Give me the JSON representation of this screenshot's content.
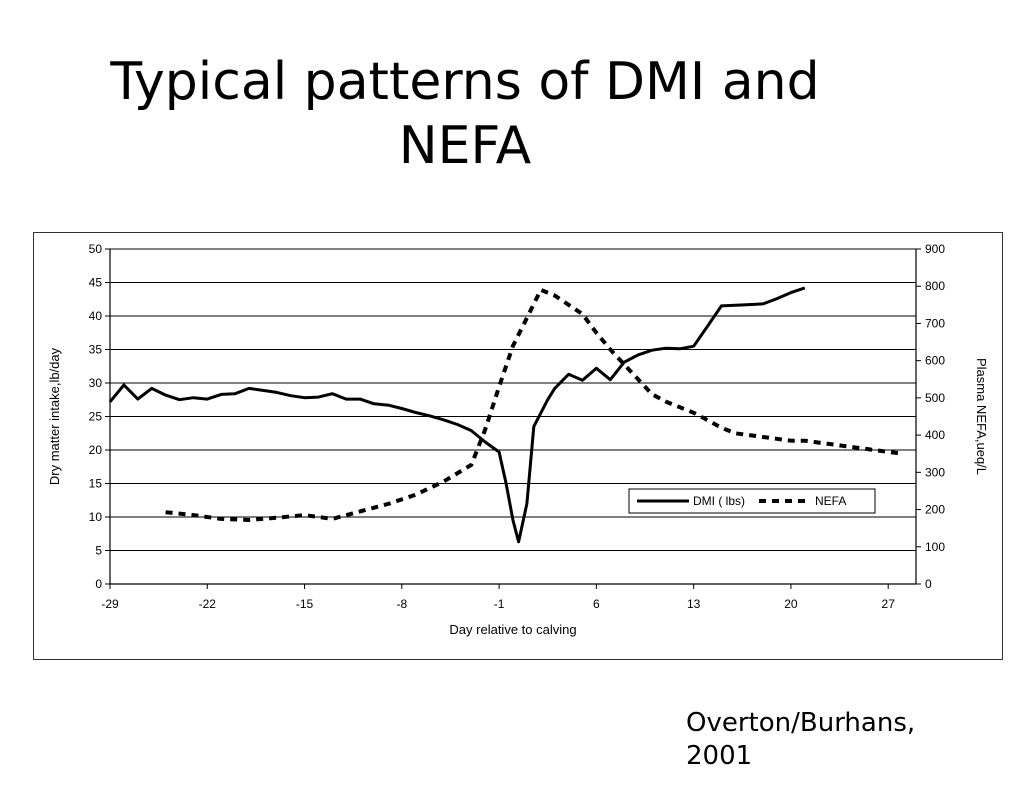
{
  "slide": {
    "title_line1": "Typical patterns of DMI and",
    "title_line2": "NEFA",
    "credit_line1": "Overton/Burhans,",
    "credit_line2": "2001"
  },
  "chart_data": {
    "type": "line",
    "xlabel": "Day relative to calving",
    "ylabel_left": "Dry matter intake,lb/day",
    "ylabel_right": "Plasma NEFA,ueq/L",
    "xlim": [
      -29,
      29
    ],
    "ylim_left": [
      0,
      50
    ],
    "ylim_right": [
      0,
      900
    ],
    "x_ticks": [
      -29,
      -22,
      -15,
      -8,
      -1,
      6,
      13,
      20,
      27
    ],
    "y_ticks_left": [
      0,
      5,
      10,
      15,
      20,
      25,
      30,
      35,
      40,
      45,
      50
    ],
    "y_ticks_right": [
      0,
      100,
      200,
      300,
      400,
      500,
      600,
      700,
      800,
      900
    ],
    "grid": "horizontal",
    "legend_placement": "bottom-right",
    "series": [
      {
        "name": "DMI ( lbs)",
        "axis": "left",
        "style": "solid",
        "color": "#000000",
        "points": [
          [
            -29,
            27.2
          ],
          [
            -28,
            29.7
          ],
          [
            -27,
            27.6
          ],
          [
            -26,
            29.2
          ],
          [
            -25,
            28.2
          ],
          [
            -24,
            27.5
          ],
          [
            -23,
            27.8
          ],
          [
            -22,
            27.6
          ],
          [
            -21,
            28.3
          ],
          [
            -20,
            28.4
          ],
          [
            -19,
            29.2
          ],
          [
            -18,
            28.9
          ],
          [
            -17,
            28.6
          ],
          [
            -16,
            28.1
          ],
          [
            -15,
            27.8
          ],
          [
            -14,
            27.9
          ],
          [
            -13,
            28.4
          ],
          [
            -12,
            27.6
          ],
          [
            -11,
            27.6
          ],
          [
            -10,
            26.9
          ],
          [
            -9,
            26.7
          ],
          [
            -8,
            26.2
          ],
          [
            -7,
            25.6
          ],
          [
            -6,
            25.1
          ],
          [
            -5,
            24.5
          ],
          [
            -4,
            23.8
          ],
          [
            -3,
            22.9
          ],
          [
            -2,
            21.2
          ],
          [
            -1,
            19.7
          ],
          [
            -0.5,
            15
          ],
          [
            0,
            9.5
          ],
          [
            0.4,
            6.3
          ],
          [
            1,
            12
          ],
          [
            1.5,
            23.5
          ],
          [
            2.5,
            27.5
          ],
          [
            3,
            29.2
          ],
          [
            4,
            31.3
          ],
          [
            5,
            30.4
          ],
          [
            6,
            32.2
          ],
          [
            7,
            30.5
          ],
          [
            8,
            33.1
          ],
          [
            9,
            34.2
          ],
          [
            10,
            34.9
          ],
          [
            11,
            35.2
          ],
          [
            12,
            35.1
          ],
          [
            13,
            35.5
          ],
          [
            14,
            38.5
          ],
          [
            15,
            41.5
          ],
          [
            16,
            41.6
          ],
          [
            17,
            41.7
          ],
          [
            18,
            41.8
          ],
          [
            19,
            42.6
          ],
          [
            20,
            43.5
          ],
          [
            21,
            44.2
          ]
        ]
      },
      {
        "name": "NEFA",
        "axis": "right",
        "style": "dashed",
        "color": "#000000",
        "points": [
          [
            -25,
            193
          ],
          [
            -23,
            185
          ],
          [
            -21,
            175
          ],
          [
            -19,
            172
          ],
          [
            -17,
            178
          ],
          [
            -15,
            185
          ],
          [
            -13,
            175
          ],
          [
            -11,
            195
          ],
          [
            -9,
            215
          ],
          [
            -7,
            240
          ],
          [
            -5,
            275
          ],
          [
            -3,
            320
          ],
          [
            -2,
            415
          ],
          [
            -1,
            530
          ],
          [
            0,
            640
          ],
          [
            1,
            715
          ],
          [
            2,
            790
          ],
          [
            3,
            775
          ],
          [
            4,
            750
          ],
          [
            5,
            725
          ],
          [
            6,
            675
          ],
          [
            7,
            630
          ],
          [
            8,
            590
          ],
          [
            9,
            550
          ],
          [
            10,
            510
          ],
          [
            11,
            490
          ],
          [
            12,
            475
          ],
          [
            13,
            460
          ],
          [
            14,
            440
          ],
          [
            15,
            420
          ],
          [
            16,
            405
          ],
          [
            17,
            400
          ],
          [
            18,
            395
          ],
          [
            19,
            390
          ],
          [
            20,
            385
          ],
          [
            21,
            385
          ],
          [
            22,
            380
          ],
          [
            23,
            375
          ],
          [
            24,
            370
          ],
          [
            25,
            365
          ],
          [
            26,
            360
          ],
          [
            27,
            355
          ],
          [
            28,
            350
          ]
        ]
      }
    ]
  }
}
